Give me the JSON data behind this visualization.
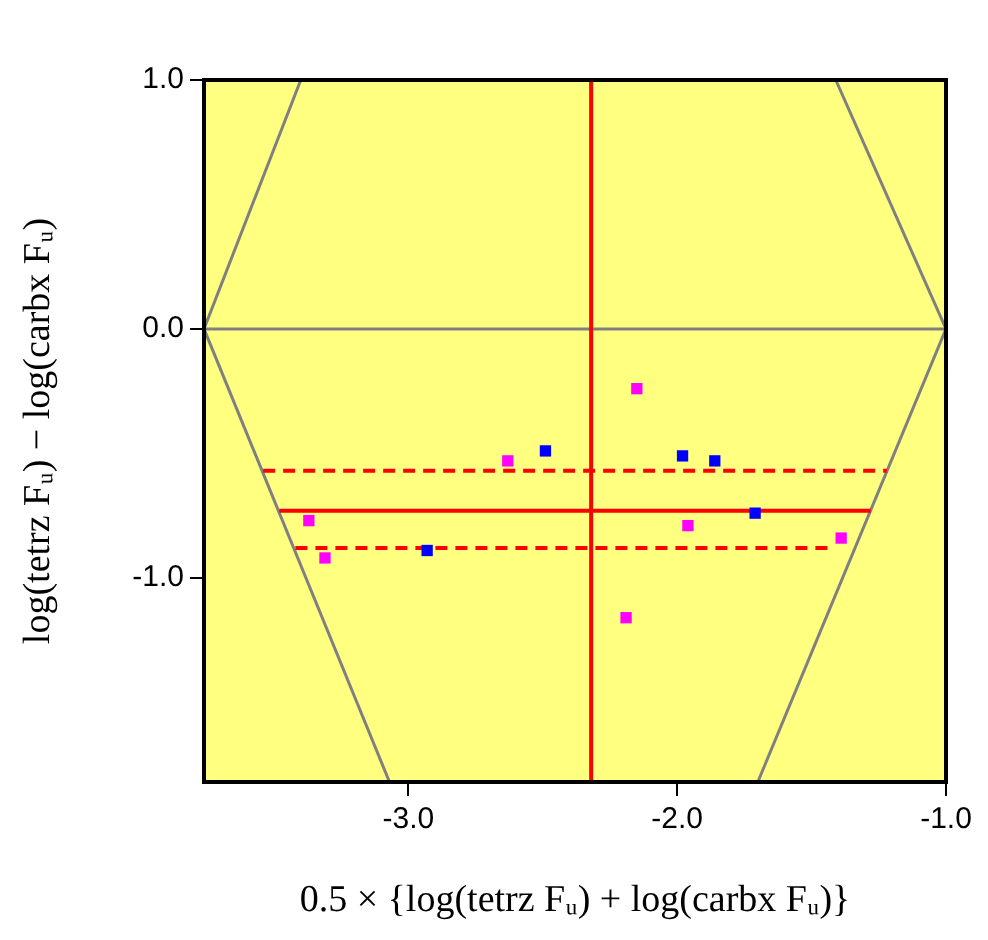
{
  "chart_data": {
    "type": "scatter",
    "xlabel": "0.5 × {log(tetrz Fᵤ) + log(carbx Fᵤ)}",
    "ylabel": "log(tetrz Fᵤ) − log(carbx Fᵤ)",
    "xlim": [
      -3.76,
      -1.0
    ],
    "ylim": [
      -1.82,
      1.0
    ],
    "xticks": [
      {
        "value": -3,
        "label": "-3.0"
      },
      {
        "value": -2,
        "label": "-2.0"
      },
      {
        "value": -1,
        "label": "-1.0"
      }
    ],
    "yticks": [
      {
        "value": 1,
        "label": "1.0"
      },
      {
        "value": 0,
        "label": "0.0"
      },
      {
        "value": -1,
        "label": "-1.0"
      }
    ],
    "marker": "square",
    "grid": false,
    "legend": false,
    "series": [
      {
        "color": "#ff00ff",
        "x": [
          -2.15,
          -2.63,
          -3.37,
          -3.31,
          -1.96,
          -1.39,
          -2.19
        ],
        "values": [
          -0.24,
          -0.53,
          -0.77,
          -0.92,
          -0.79,
          -0.84,
          -1.16
        ]
      },
      {
        "color": "#0000ff",
        "x": [
          -2.49,
          -1.98,
          -1.86,
          -1.71,
          -2.93
        ],
        "values": [
          -0.49,
          -0.51,
          -0.53,
          -0.74,
          -0.89
        ]
      },
      {
        "type": "line",
        "marker": "none",
        "color": "#ff0000",
        "line_style": "solid",
        "x": [
          -3.48,
          -1.28
        ],
        "values": [
          -0.73,
          -0.73
        ]
      },
      {
        "type": "line",
        "marker": "none",
        "color": "#ff0000",
        "line_style": "dashed",
        "x": [
          -3.54,
          -1.22
        ],
        "values": [
          -0.57,
          -0.57
        ]
      },
      {
        "type": "line",
        "marker": "none",
        "color": "#ff0000",
        "line_style": "dashed",
        "x": [
          -3.42,
          -1.42
        ],
        "values": [
          -0.88,
          -0.88
        ]
      },
      {
        "type": "line",
        "marker": "none",
        "color": "#808080",
        "line_style": "solid",
        "x": [
          -3.4,
          -3.76,
          -3.07
        ],
        "values": [
          1.0,
          0,
          -1.82
        ]
      },
      {
        "type": "line",
        "marker": "none",
        "color": "#808080",
        "line_style": "solid",
        "x": [
          -1.41,
          -1.0,
          -1.7
        ],
        "values": [
          1.0,
          0,
          -1.82
        ]
      }
    ],
    "ref_lines": [
      {
        "axis": "y",
        "value": 0,
        "color": "#808080"
      },
      {
        "axis": "x",
        "value": -2.32,
        "color": "#ff0000"
      }
    ]
  }
}
